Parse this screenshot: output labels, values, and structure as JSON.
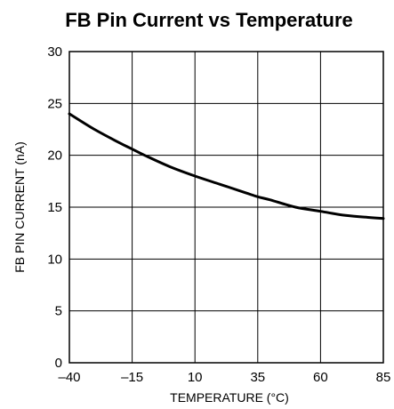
{
  "chart_data": {
    "type": "line",
    "title": "FB Pin Current vs Temperature",
    "xlabel": "TEMPERATURE (°C)",
    "ylabel": "FB PIN CURRENT (nA)",
    "xlim": [
      -40,
      85
    ],
    "ylim": [
      0,
      30
    ],
    "xticks": [
      -40,
      -15,
      10,
      35,
      60,
      85
    ],
    "xtick_labels": [
      "–40",
      "–15",
      "10",
      "35",
      "60",
      "85"
    ],
    "yticks": [
      0,
      5,
      10,
      15,
      20,
      25,
      30
    ],
    "ytick_labels": [
      "0",
      "5",
      "10",
      "15",
      "20",
      "25",
      "30"
    ],
    "grid": true,
    "series": [
      {
        "x": [
          -40,
          -30,
          -20,
          -15,
          -10,
          0,
          10,
          20,
          30,
          35,
          40,
          50,
          60,
          70,
          80,
          85
        ],
        "y": [
          24.0,
          22.5,
          21.2,
          20.6,
          20.0,
          18.9,
          18.0,
          17.2,
          16.4,
          16.0,
          15.7,
          15.0,
          14.6,
          14.2,
          14.0,
          13.9
        ]
      }
    ],
    "colors": {
      "line": "#000000",
      "grid": "#000000",
      "background": "#ffffff"
    }
  }
}
